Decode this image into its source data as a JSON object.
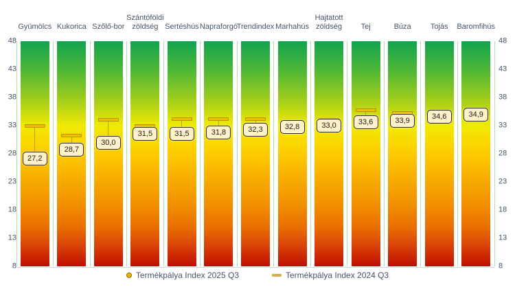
{
  "chart_data": {
    "type": "bar",
    "title": "",
    "categories": [
      "Gyümölcs",
      "Kukorica",
      "Szőlő-bor",
      "Szántóföldi zöldség",
      "Sertéshús",
      "Napraforgó",
      "Trendindex",
      "Marhahús",
      "Hajtatott zöldség",
      "Tej",
      "Búza",
      "Tojás",
      "Baromfihús"
    ],
    "series": [
      {
        "name": "Termékpálya Index 2025 Q3",
        "marker": "labeled-point",
        "values": [
          27.2,
          28.7,
          30.0,
          31.5,
          31.5,
          31.8,
          32.3,
          32.8,
          33.0,
          33.6,
          33.9,
          34.6,
          34.9
        ],
        "labels": [
          "27,2",
          "28,7",
          "30,0",
          "31,5",
          "31,5",
          "31,8",
          "32,3",
          "32,8",
          "33,0",
          "33,6",
          "33,9",
          "34,6",
          "34,9"
        ]
      },
      {
        "name": "Termékpálya Index 2024 Q3",
        "marker": "dash",
        "values": [
          33.0,
          31.2,
          34.0,
          33.0,
          34.2,
          34.2,
          34.1,
          33.2,
          34.0,
          35.8,
          35.2,
          34.7,
          35.0
        ]
      }
    ],
    "ylim": [
      8,
      48
    ],
    "yticks": [
      48,
      43,
      38,
      33,
      28,
      23,
      18,
      13,
      8
    ],
    "grid": false,
    "legend_position": "bottom",
    "bar_gradient_top_to_bottom": [
      "#12A350",
      "#4BB636",
      "#9ACB1D",
      "#CFDD0E",
      "#EFEA05",
      "#FBD800",
      "#FCC400",
      "#F7A900",
      "#F19000",
      "#E96F00",
      "#D94208",
      "#BE0E00"
    ]
  },
  "legend": {
    "items": [
      {
        "label": "Termékpálya Index 2025 Q3",
        "marker": "circle",
        "color": "#E7B500"
      },
      {
        "label": "Termékpálya Index 2024 Q3",
        "marker": "dash",
        "color": "#D4AF4E"
      }
    ]
  },
  "colors": {
    "text": "#44546A",
    "value_label_bg": "#FFF1C9",
    "value_label_border": "#262626",
    "dash_fill": "#EFC100",
    "dash_border": "#B98F00",
    "separator_line": "#B7DDB2",
    "axis_line": "#D9D9D9"
  }
}
